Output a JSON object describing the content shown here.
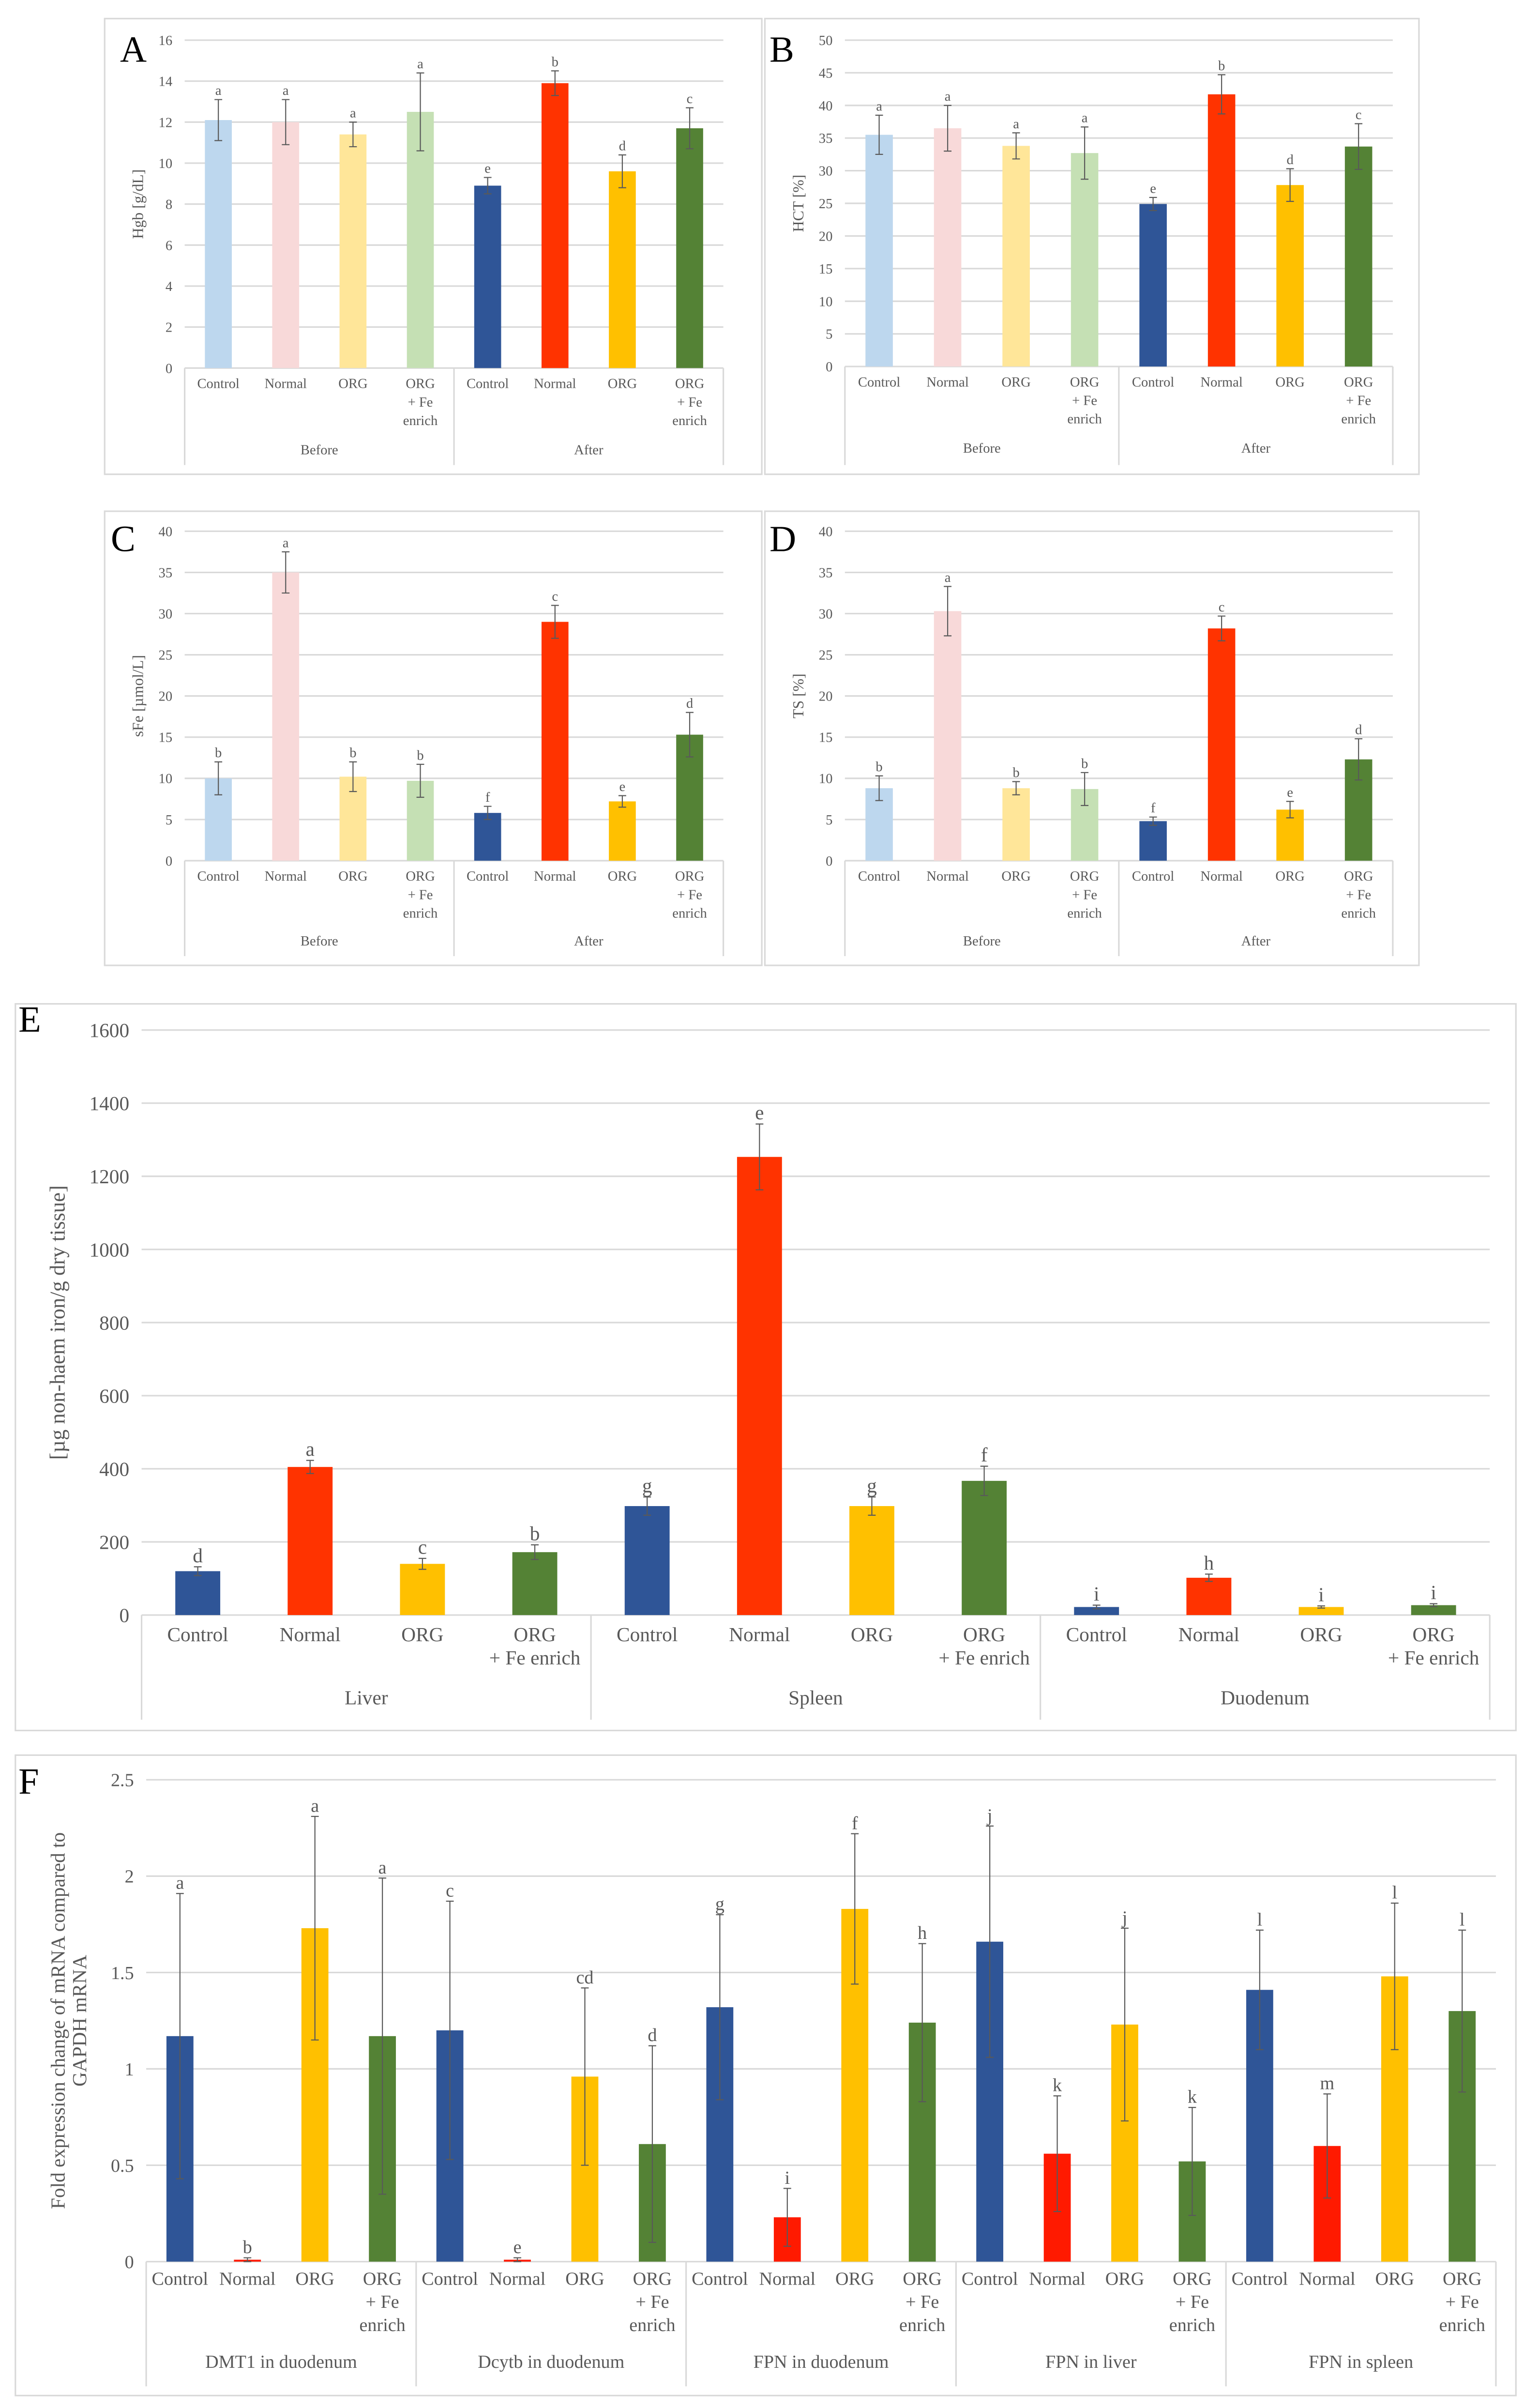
{
  "colors": {
    "before": [
      "#bdd7ee",
      "#f8d9d9",
      "#ffe699",
      "#c5e0b4"
    ],
    "after": [
      "#2f5597",
      "#ff3300",
      "#ffc000",
      "#548235"
    ],
    "f_normal": "#ff1a00"
  },
  "chart_data": [
    {
      "panel": "A",
      "type": "bar",
      "ylabel": "Hgb [g/dL]",
      "ylim": [
        0,
        16
      ],
      "ystep": 2,
      "grid": true,
      "groups": [
        {
          "name": "Before",
          "categories": [
            [
              "Control"
            ],
            [
              "Normal"
            ],
            [
              "ORG"
            ],
            [
              "ORG",
              "+ Fe",
              "enrich"
            ]
          ],
          "values": [
            12.1,
            12.0,
            11.4,
            12.5
          ],
          "errors": [
            1.0,
            1.1,
            0.6,
            1.9
          ],
          "letters": [
            "a",
            "a",
            "a",
            "a"
          ],
          "shade": "before"
        },
        {
          "name": "After",
          "categories": [
            [
              "Control"
            ],
            [
              "Normal"
            ],
            [
              "ORG"
            ],
            [
              "ORG",
              "+ Fe",
              "enrich"
            ]
          ],
          "values": [
            8.9,
            13.9,
            9.6,
            11.7
          ],
          "errors": [
            0.4,
            0.6,
            0.8,
            1.0
          ],
          "letters": [
            "e",
            "b",
            "d",
            "c"
          ],
          "shade": "after"
        }
      ]
    },
    {
      "panel": "B",
      "type": "bar",
      "ylabel": "HCT [%]",
      "ylim": [
        0,
        50
      ],
      "ystep": 5,
      "grid": true,
      "groups": [
        {
          "name": "Before",
          "categories": [
            [
              "Control"
            ],
            [
              "Normal"
            ],
            [
              "ORG"
            ],
            [
              "ORG",
              "+ Fe",
              "enrich"
            ]
          ],
          "values": [
            35.5,
            36.5,
            33.8,
            32.7
          ],
          "errors": [
            3.0,
            3.5,
            2.0,
            4.0
          ],
          "letters": [
            "a",
            "a",
            "a",
            "a"
          ],
          "shade": "before"
        },
        {
          "name": "After",
          "categories": [
            [
              "Control"
            ],
            [
              "Normal"
            ],
            [
              "ORG"
            ],
            [
              "ORG",
              "+ Fe",
              "enrich"
            ]
          ],
          "values": [
            24.9,
            41.7,
            27.8,
            33.7
          ],
          "errors": [
            1.0,
            3.0,
            2.5,
            3.5
          ],
          "letters": [
            "e",
            "b",
            "d",
            "c"
          ],
          "shade": "after"
        }
      ]
    },
    {
      "panel": "C",
      "type": "bar",
      "ylabel": "sFe [µmol/L]",
      "ylim": [
        0,
        40
      ],
      "ystep": 5,
      "grid": true,
      "groups": [
        {
          "name": "Before",
          "categories": [
            [
              "Control"
            ],
            [
              "Normal"
            ],
            [
              "ORG"
            ],
            [
              "ORG",
              "+ Fe",
              "enrich"
            ]
          ],
          "values": [
            10.0,
            35.0,
            10.2,
            9.7
          ],
          "errors": [
            2.0,
            2.5,
            1.8,
            2.0
          ],
          "letters": [
            "b",
            "a",
            "b",
            "b"
          ],
          "shade": "before"
        },
        {
          "name": "After",
          "categories": [
            [
              "Control"
            ],
            [
              "Normal"
            ],
            [
              "ORG"
            ],
            [
              "ORG",
              "+ Fe",
              "enrich"
            ]
          ],
          "values": [
            5.8,
            29.0,
            7.2,
            15.3
          ],
          "errors": [
            0.8,
            2.0,
            0.7,
            2.7
          ],
          "letters": [
            "f",
            "c",
            "e",
            "d"
          ],
          "shade": "after"
        }
      ]
    },
    {
      "panel": "D",
      "type": "bar",
      "ylabel": "TS [%]",
      "ylim": [
        0,
        40
      ],
      "ystep": 5,
      "grid": true,
      "groups": [
        {
          "name": "Before",
          "categories": [
            [
              "Control"
            ],
            [
              "Normal"
            ],
            [
              "ORG"
            ],
            [
              "ORG",
              "+ Fe",
              "enrich"
            ]
          ],
          "values": [
            8.8,
            30.3,
            8.8,
            8.7
          ],
          "errors": [
            1.5,
            3.0,
            0.8,
            2.0
          ],
          "letters": [
            "b",
            "a",
            "b",
            "b"
          ],
          "shade": "before"
        },
        {
          "name": "After",
          "categories": [
            [
              "Control"
            ],
            [
              "Normal"
            ],
            [
              "ORG"
            ],
            [
              "ORG",
              "+ Fe",
              "enrich"
            ]
          ],
          "values": [
            4.8,
            28.2,
            6.2,
            12.3
          ],
          "errors": [
            0.5,
            1.5,
            1.0,
            2.5
          ],
          "letters": [
            "f",
            "c",
            "e",
            "d"
          ],
          "shade": "after"
        }
      ]
    },
    {
      "panel": "E",
      "type": "bar",
      "ylabel": "[µg non-haem iron/g dry tissue]",
      "ylim": [
        0,
        1600
      ],
      "ystep": 200,
      "grid": true,
      "groups": [
        {
          "name": "Liver",
          "categories": [
            [
              "Control"
            ],
            [
              "Normal"
            ],
            [
              "ORG"
            ],
            [
              "ORG",
              "+ Fe enrich"
            ]
          ],
          "values": [
            120,
            405,
            140,
            172
          ],
          "errors": [
            12,
            18,
            15,
            20
          ],
          "letters": [
            "d",
            "a",
            "c",
            "b"
          ],
          "shade": "after"
        },
        {
          "name": "Spleen",
          "categories": [
            [
              "Control"
            ],
            [
              "Normal"
            ],
            [
              "ORG"
            ],
            [
              "ORG",
              "+ Fe enrich"
            ]
          ],
          "values": [
            298,
            1253,
            298,
            367
          ],
          "errors": [
            25,
            90,
            25,
            40
          ],
          "letters": [
            "g",
            "e",
            "g",
            "f"
          ],
          "shade": "after"
        },
        {
          "name": "Duodenum",
          "categories": [
            [
              "Control"
            ],
            [
              "Normal"
            ],
            [
              "ORG"
            ],
            [
              "ORG",
              "+ Fe enrich"
            ]
          ],
          "values": [
            22,
            102,
            22,
            27
          ],
          "errors": [
            5,
            10,
            3,
            4
          ],
          "letters": [
            "i",
            "h",
            "i",
            "i"
          ],
          "shade": "after"
        }
      ]
    },
    {
      "panel": "F",
      "type": "bar",
      "ylabel": "Fold expression change of mRNA compared to GAPDH mRNA",
      "ylabel_lines": [
        "Fold expression change of mRNA compared to",
        "GAPDH mRNA"
      ],
      "ylim": [
        0,
        2.5
      ],
      "ystep": 0.5,
      "grid": true,
      "groups": [
        {
          "name": "DMT1 in duodenum",
          "categories": [
            [
              "Control"
            ],
            [
              "Normal"
            ],
            [
              "ORG"
            ],
            [
              "ORG",
              "+ Fe",
              "enrich"
            ]
          ],
          "values": [
            1.17,
            0.01,
            1.73,
            1.17
          ],
          "errors": [
            0.74,
            0.01,
            0.58,
            0.82
          ],
          "letters": [
            "a",
            "b",
            "a",
            "a"
          ],
          "shade": "after"
        },
        {
          "name": "Dcytb in duodenum",
          "categories": [
            [
              "Control"
            ],
            [
              "Normal"
            ],
            [
              "ORG"
            ],
            [
              "ORG",
              "+ Fe",
              "enrich"
            ]
          ],
          "values": [
            1.2,
            0.01,
            0.96,
            0.61
          ],
          "errors": [
            0.67,
            0.01,
            0.46,
            0.51
          ],
          "letters": [
            "c",
            "e",
            "cd",
            "d"
          ],
          "shade": "after"
        },
        {
          "name": "FPN in duodenum",
          "categories": [
            [
              "Control"
            ],
            [
              "Normal"
            ],
            [
              "ORG"
            ],
            [
              "ORG",
              "+ Fe",
              "enrich"
            ]
          ],
          "values": [
            1.32,
            0.23,
            1.83,
            1.24
          ],
          "errors": [
            0.48,
            0.15,
            0.39,
            0.41
          ],
          "letters": [
            "g",
            "i",
            "f",
            "h"
          ],
          "shade": "after"
        },
        {
          "name": "FPN in liver",
          "categories": [
            [
              "Control"
            ],
            [
              "Normal"
            ],
            [
              "ORG"
            ],
            [
              "ORG",
              "+ Fe",
              "enrich"
            ]
          ],
          "values": [
            1.66,
            0.56,
            1.23,
            0.52
          ],
          "errors": [
            0.6,
            0.3,
            0.5,
            0.28
          ],
          "letters": [
            "j",
            "k",
            "j",
            "k"
          ],
          "shade": "after"
        },
        {
          "name": "FPN in spleen",
          "categories": [
            [
              "Control"
            ],
            [
              "Normal"
            ],
            [
              "ORG"
            ],
            [
              "ORG",
              "+ Fe",
              "enrich"
            ]
          ],
          "values": [
            1.41,
            0.6,
            1.48,
            1.3
          ],
          "errors": [
            0.31,
            0.27,
            0.38,
            0.42
          ],
          "letters": [
            "l",
            "m",
            "l",
            "l"
          ],
          "shade": "after"
        }
      ]
    }
  ]
}
